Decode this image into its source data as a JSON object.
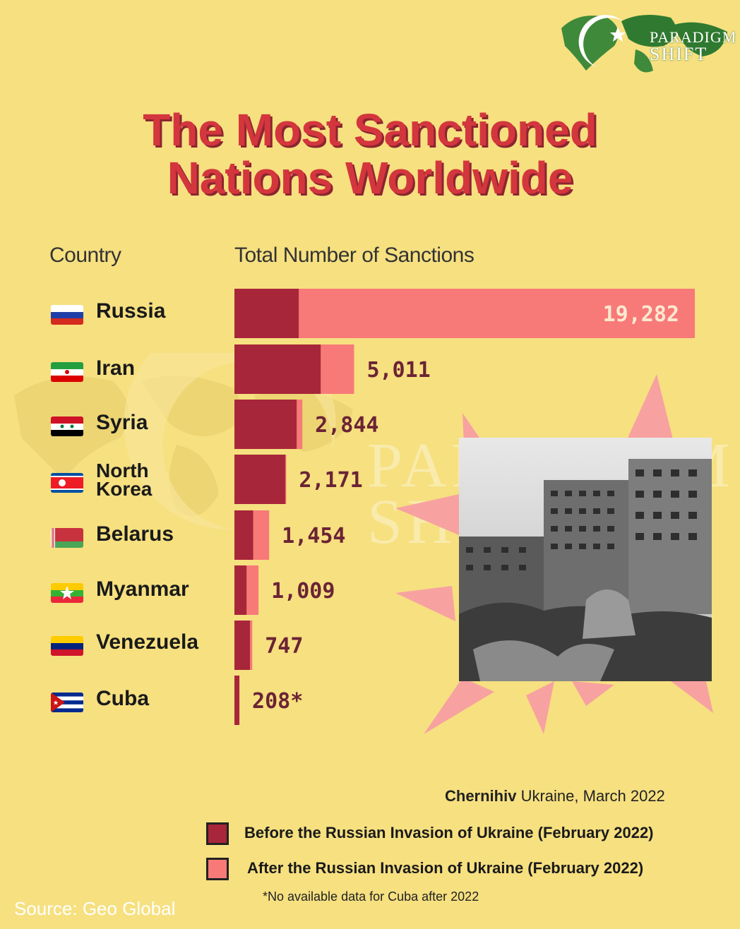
{
  "logo": {
    "line1": "PARADIGM",
    "line2": "SHIFT"
  },
  "watermark": {
    "text1": "PARADIGM",
    "text2": "SHIFT"
  },
  "title": {
    "line1": "The Most Sanctioned",
    "line2": "Nations Worldwide"
  },
  "headers": {
    "country": "Country",
    "total": "Total Number of Sanctions"
  },
  "colors": {
    "before": "#a8263a",
    "after": "#f77a78",
    "title": "#d4363d",
    "background": "#f6e080"
  },
  "chart_data": {
    "type": "bar",
    "orientation": "horizontal",
    "stacked": true,
    "categories": [
      "Russia",
      "Iran",
      "Syria",
      "North Korea",
      "Belarus",
      "Myanmar",
      "Venezuela",
      "Cuba"
    ],
    "series": [
      {
        "name": "Before the Russian Invasion of Ukraine (February 2022)",
        "values": [
          2695,
          3616,
          2608,
          2133,
          788,
          510,
          651,
          208
        ]
      },
      {
        "name": "After the Russian Invasion of Ukraine (February 2022)",
        "values": [
          16587,
          1395,
          236,
          38,
          666,
          499,
          96,
          0
        ]
      }
    ],
    "totals": [
      19282,
      5011,
      2844,
      2171,
      1454,
      1009,
      747,
      208
    ],
    "total_labels": [
      "19,282",
      "5,011",
      "2,844",
      "2,171",
      "1,454",
      "1,009",
      "747",
      "208*"
    ],
    "xlim": [
      0,
      19282
    ],
    "grid": false
  },
  "countries": [
    {
      "name": "Russia",
      "flag": "russia-flag-icon"
    },
    {
      "name": "Iran",
      "flag": "iran-flag-icon"
    },
    {
      "name": "Syria",
      "flag": "syria-flag-icon"
    },
    {
      "name_line1": "North",
      "name_line2": "Korea",
      "flag": "north-korea-flag-icon"
    },
    {
      "name": "Belarus",
      "flag": "belarus-flag-icon"
    },
    {
      "name": "Myanmar",
      "flag": "myanmar-flag-icon"
    },
    {
      "name": "Venezuela",
      "flag": "venezuela-flag-icon"
    },
    {
      "name": "Cuba",
      "flag": "cuba-flag-icon"
    }
  ],
  "caption": {
    "bold": "Chernihiv",
    "rest": " Ukraine, March 2022"
  },
  "legend": {
    "before": "Before the Russian Invasion of Ukraine (February 2022)",
    "after": "After the Russian Invasion of Ukraine (February 2022)"
  },
  "footnote": "*No available data for Cuba after 2022",
  "source": "Source: Geo Global"
}
